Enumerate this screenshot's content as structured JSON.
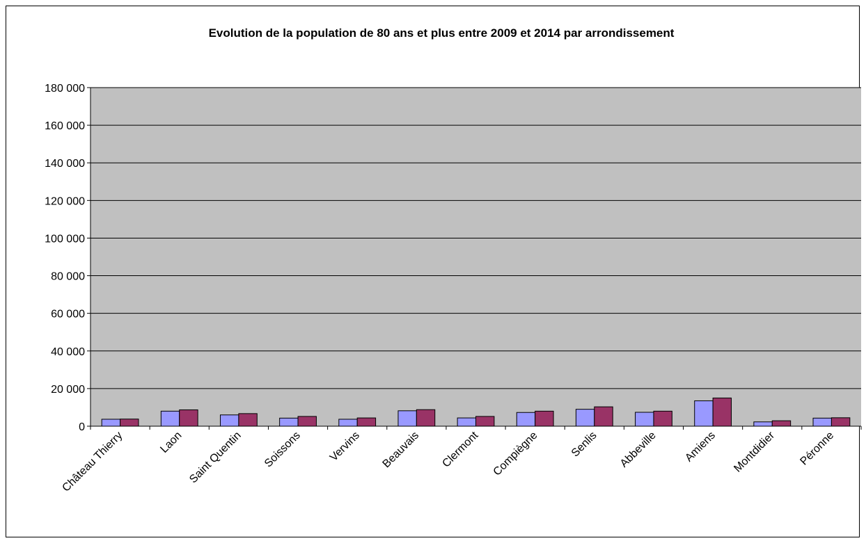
{
  "chart_data": {
    "type": "bar",
    "title": "Evolution de la population de 80 ans et plus entre 2009 et 2014 par arrondissement",
    "xlabel": "",
    "ylabel": "",
    "ylim": [
      0,
      180000
    ],
    "yticks": [
      0,
      20000,
      40000,
      60000,
      80000,
      100000,
      120000,
      140000,
      160000,
      180000
    ],
    "ytick_labels": [
      "0",
      "20 000",
      "40 000",
      "60 000",
      "80 000",
      "100 000",
      "120 000",
      "140 000",
      "160 000",
      "180 000"
    ],
    "grid": true,
    "legend": "none",
    "categories": [
      "Château Thierry",
      "Laon",
      "Saint Quentin",
      "Soissons",
      "Vervins",
      "Beauvais",
      "Clermont",
      "Compiègne",
      "Senlis",
      "Abbeville",
      "Amiens",
      "Montdidier",
      "Péronne"
    ],
    "series": [
      {
        "color": "#9999ff",
        "values": [
          3700,
          8000,
          6000,
          4300,
          3700,
          8200,
          4400,
          7300,
          9000,
          7400,
          13500,
          2300,
          4300
        ]
      },
      {
        "color": "#993366",
        "values": [
          3800,
          8700,
          6700,
          5200,
          4400,
          8800,
          5200,
          8000,
          10300,
          8000,
          15000,
          2900,
          4500
        ]
      }
    ],
    "colors": {
      "plot_background": "#c0c0c0",
      "gridline": "#000000"
    }
  }
}
